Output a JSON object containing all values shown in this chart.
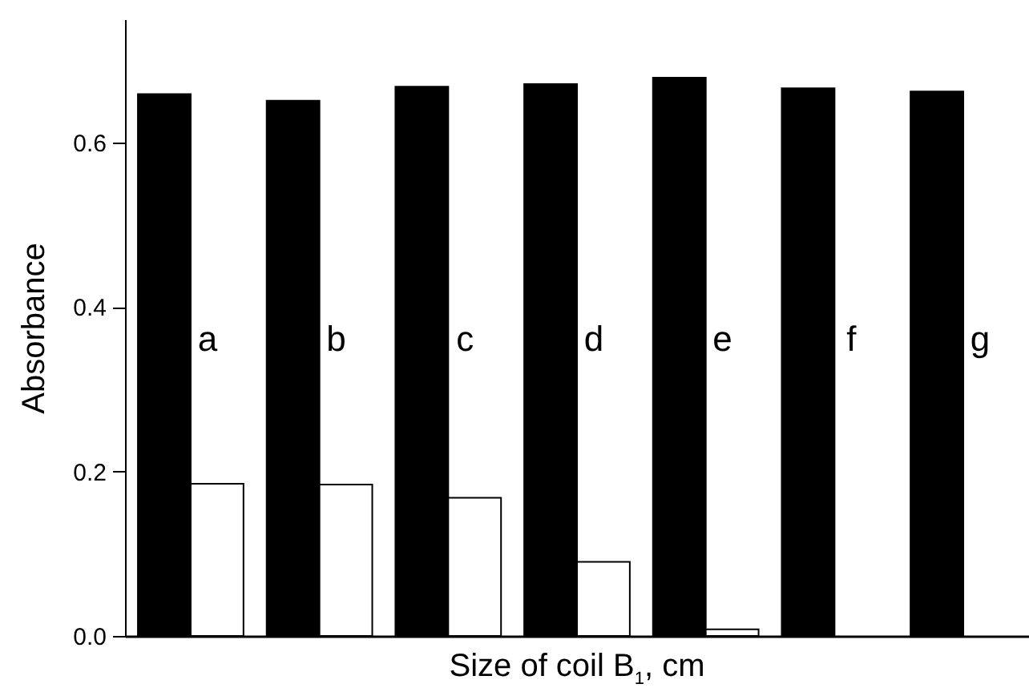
{
  "chart_data": {
    "type": "bar",
    "xlabel": "Size of coil B$_{1}$, cm",
    "ylabel": "Absorbance",
    "categories": [
      null,
      null,
      null,
      null,
      null,
      null,
      null
    ],
    "series": [
      {
        "color": "#000000",
        "values": [
          0.659,
          0.651,
          0.668,
          0.671,
          0.679,
          0.666,
          0.662
        ]
      },
      {
        "color": "#ffffff",
        "values": [
          0.185,
          0.184,
          0.168,
          0.09,
          0.008,
          null,
          null
        ]
      }
    ],
    "ylim": [
      0,
      0.75
    ],
    "yticks": [
      {
        "value": 0,
        "label": "0.0"
      },
      {
        "value": 0.2,
        "label": "0.2"
      },
      {
        "value": 0.4,
        "label": "0.4"
      },
      {
        "value": 0.6,
        "label": "0.6"
      }
    ],
    "annotations": [
      "a",
      "b",
      "c",
      "d",
      "e",
      "f",
      "g"
    ]
  }
}
